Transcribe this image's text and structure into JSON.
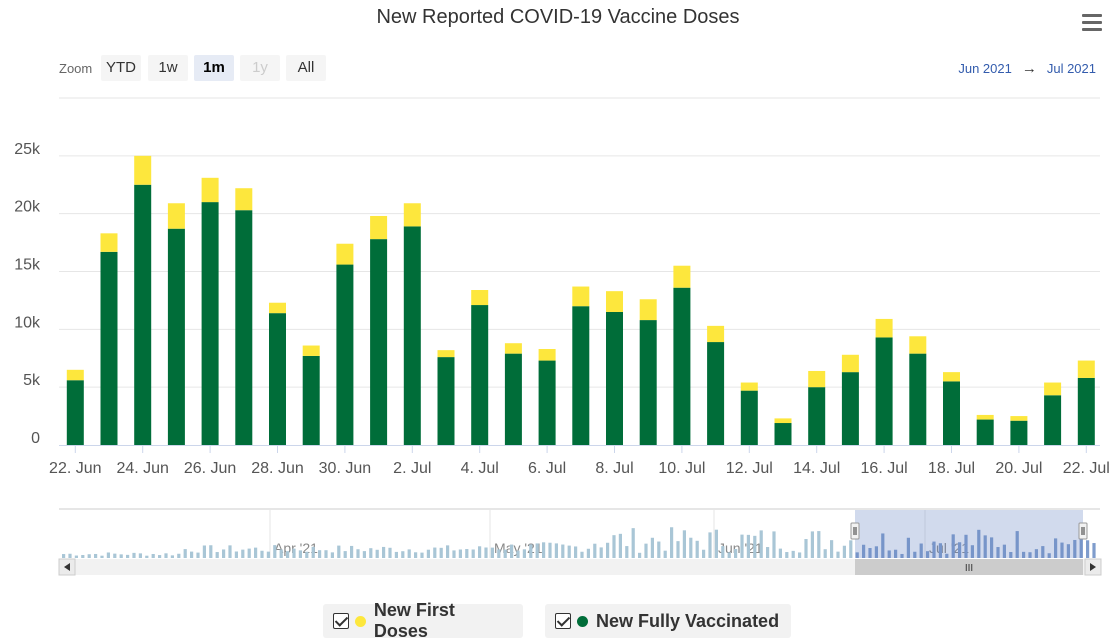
{
  "title": "New Reported COVID-19 Vaccine Doses",
  "menu_icon": "hamburger-menu-icon",
  "zoom": {
    "label": "Zoom",
    "buttons": [
      "YTD",
      "1w",
      "1m",
      "1y",
      "All"
    ],
    "active": "1m",
    "disabled": [
      "1y"
    ]
  },
  "range": {
    "from": "Jun 2021",
    "to": "Jul 2021",
    "arrow": "→"
  },
  "legend": [
    {
      "label": "New First Doses",
      "color": "#fde73d"
    },
    {
      "label": "New Fully Vaccinated",
      "color": "#006d39"
    }
  ],
  "navigator": {
    "labels": [
      "Apr '21",
      "May '21",
      "Jun '21",
      "Jul '21"
    ],
    "handle_glyph": "III"
  },
  "chart_data": {
    "type": "bar",
    "stacked": true,
    "title": "New Reported COVID-19 Vaccine Doses",
    "categories": [
      "22. Jun",
      "23. Jun",
      "24. Jun",
      "25. Jun",
      "26. Jun",
      "27. Jun",
      "28. Jun",
      "29. Jun",
      "30. Jun",
      "1. Jul",
      "2. Jul",
      "3. Jul",
      "4. Jul",
      "5. Jul",
      "6. Jul",
      "7. Jul",
      "8. Jul",
      "9. Jul",
      "10. Jul",
      "11. Jul",
      "12. Jul",
      "13. Jul",
      "14. Jul",
      "15. Jul",
      "16. Jul",
      "17. Jul",
      "18. Jul",
      "19. Jul",
      "20. Jul",
      "21. Jul",
      "22. Jul"
    ],
    "x_tick_labels": [
      "22. Jun",
      "24. Jun",
      "26. Jun",
      "28. Jun",
      "30. Jun",
      "2. Jul",
      "4. Jul",
      "6. Jul",
      "8. Jul",
      "10. Jul",
      "12. Jul",
      "14. Jul",
      "16. Jul",
      "18. Jul",
      "20. Jul",
      "22. Jul"
    ],
    "y_ticks": [
      0,
      5000,
      10000,
      15000,
      20000,
      25000
    ],
    "y_tick_labels": [
      "0",
      "5k",
      "10k",
      "15k",
      "20k",
      "25k"
    ],
    "ylim": [
      0,
      30000
    ],
    "series": [
      {
        "name": "New Fully Vaccinated",
        "color": "#006d39",
        "values": [
          5600,
          16700,
          22500,
          18700,
          21000,
          20300,
          11400,
          7700,
          15600,
          17800,
          18900,
          7600,
          12100,
          7900,
          7300,
          12000,
          11500,
          10800,
          13600,
          8900,
          4700,
          1900,
          5000,
          6300,
          9300,
          7900,
          5500,
          2200,
          2100,
          4300,
          5800
        ]
      },
      {
        "name": "New First Doses",
        "color": "#fde73d",
        "values": [
          900,
          1600,
          2500,
          2200,
          2100,
          1900,
          900,
          900,
          1800,
          2000,
          2000,
          600,
          1300,
          900,
          1000,
          1700,
          1800,
          1800,
          1900,
          1400,
          700,
          400,
          1400,
          1500,
          1600,
          1500,
          800,
          400,
          400,
          1100,
          1500
        ]
      }
    ]
  }
}
